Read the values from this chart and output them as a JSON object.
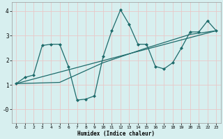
{
  "xlabel": "Humidex (Indice chaleur)",
  "bg_color": "#d7efef",
  "line_color": "#1e6b6b",
  "grid_color": "#c0e0e0",
  "xlim": [
    -0.5,
    23.5
  ],
  "ylim": [
    -0.55,
    4.35
  ],
  "xticks": [
    0,
    1,
    2,
    3,
    4,
    5,
    6,
    7,
    8,
    9,
    10,
    11,
    12,
    13,
    14,
    15,
    16,
    17,
    18,
    19,
    20,
    21,
    22,
    23
  ],
  "yticks": [
    0,
    1,
    2,
    3,
    4
  ],
  "ytick_labels": [
    "-0",
    "1",
    "2",
    "3",
    "4"
  ],
  "series1_x": [
    0,
    1,
    2,
    3,
    4,
    5,
    6,
    7,
    8,
    9,
    10,
    11,
    12,
    13,
    14,
    15,
    16,
    17,
    18,
    19,
    20,
    21,
    22,
    23
  ],
  "series1_y": [
    1.05,
    1.3,
    1.4,
    2.6,
    2.65,
    2.65,
    1.75,
    0.38,
    0.42,
    0.55,
    2.15,
    3.2,
    4.05,
    3.45,
    2.65,
    2.65,
    1.75,
    1.65,
    1.9,
    2.5,
    3.15,
    3.15,
    3.6,
    3.2
  ],
  "trend1_x": [
    0,
    23
  ],
  "trend1_y": [
    1.05,
    3.2
  ],
  "trend2_x": [
    0,
    5,
    10,
    15,
    20,
    23
  ],
  "trend2_y": [
    1.05,
    1.1,
    1.9,
    2.5,
    3.05,
    3.2
  ]
}
